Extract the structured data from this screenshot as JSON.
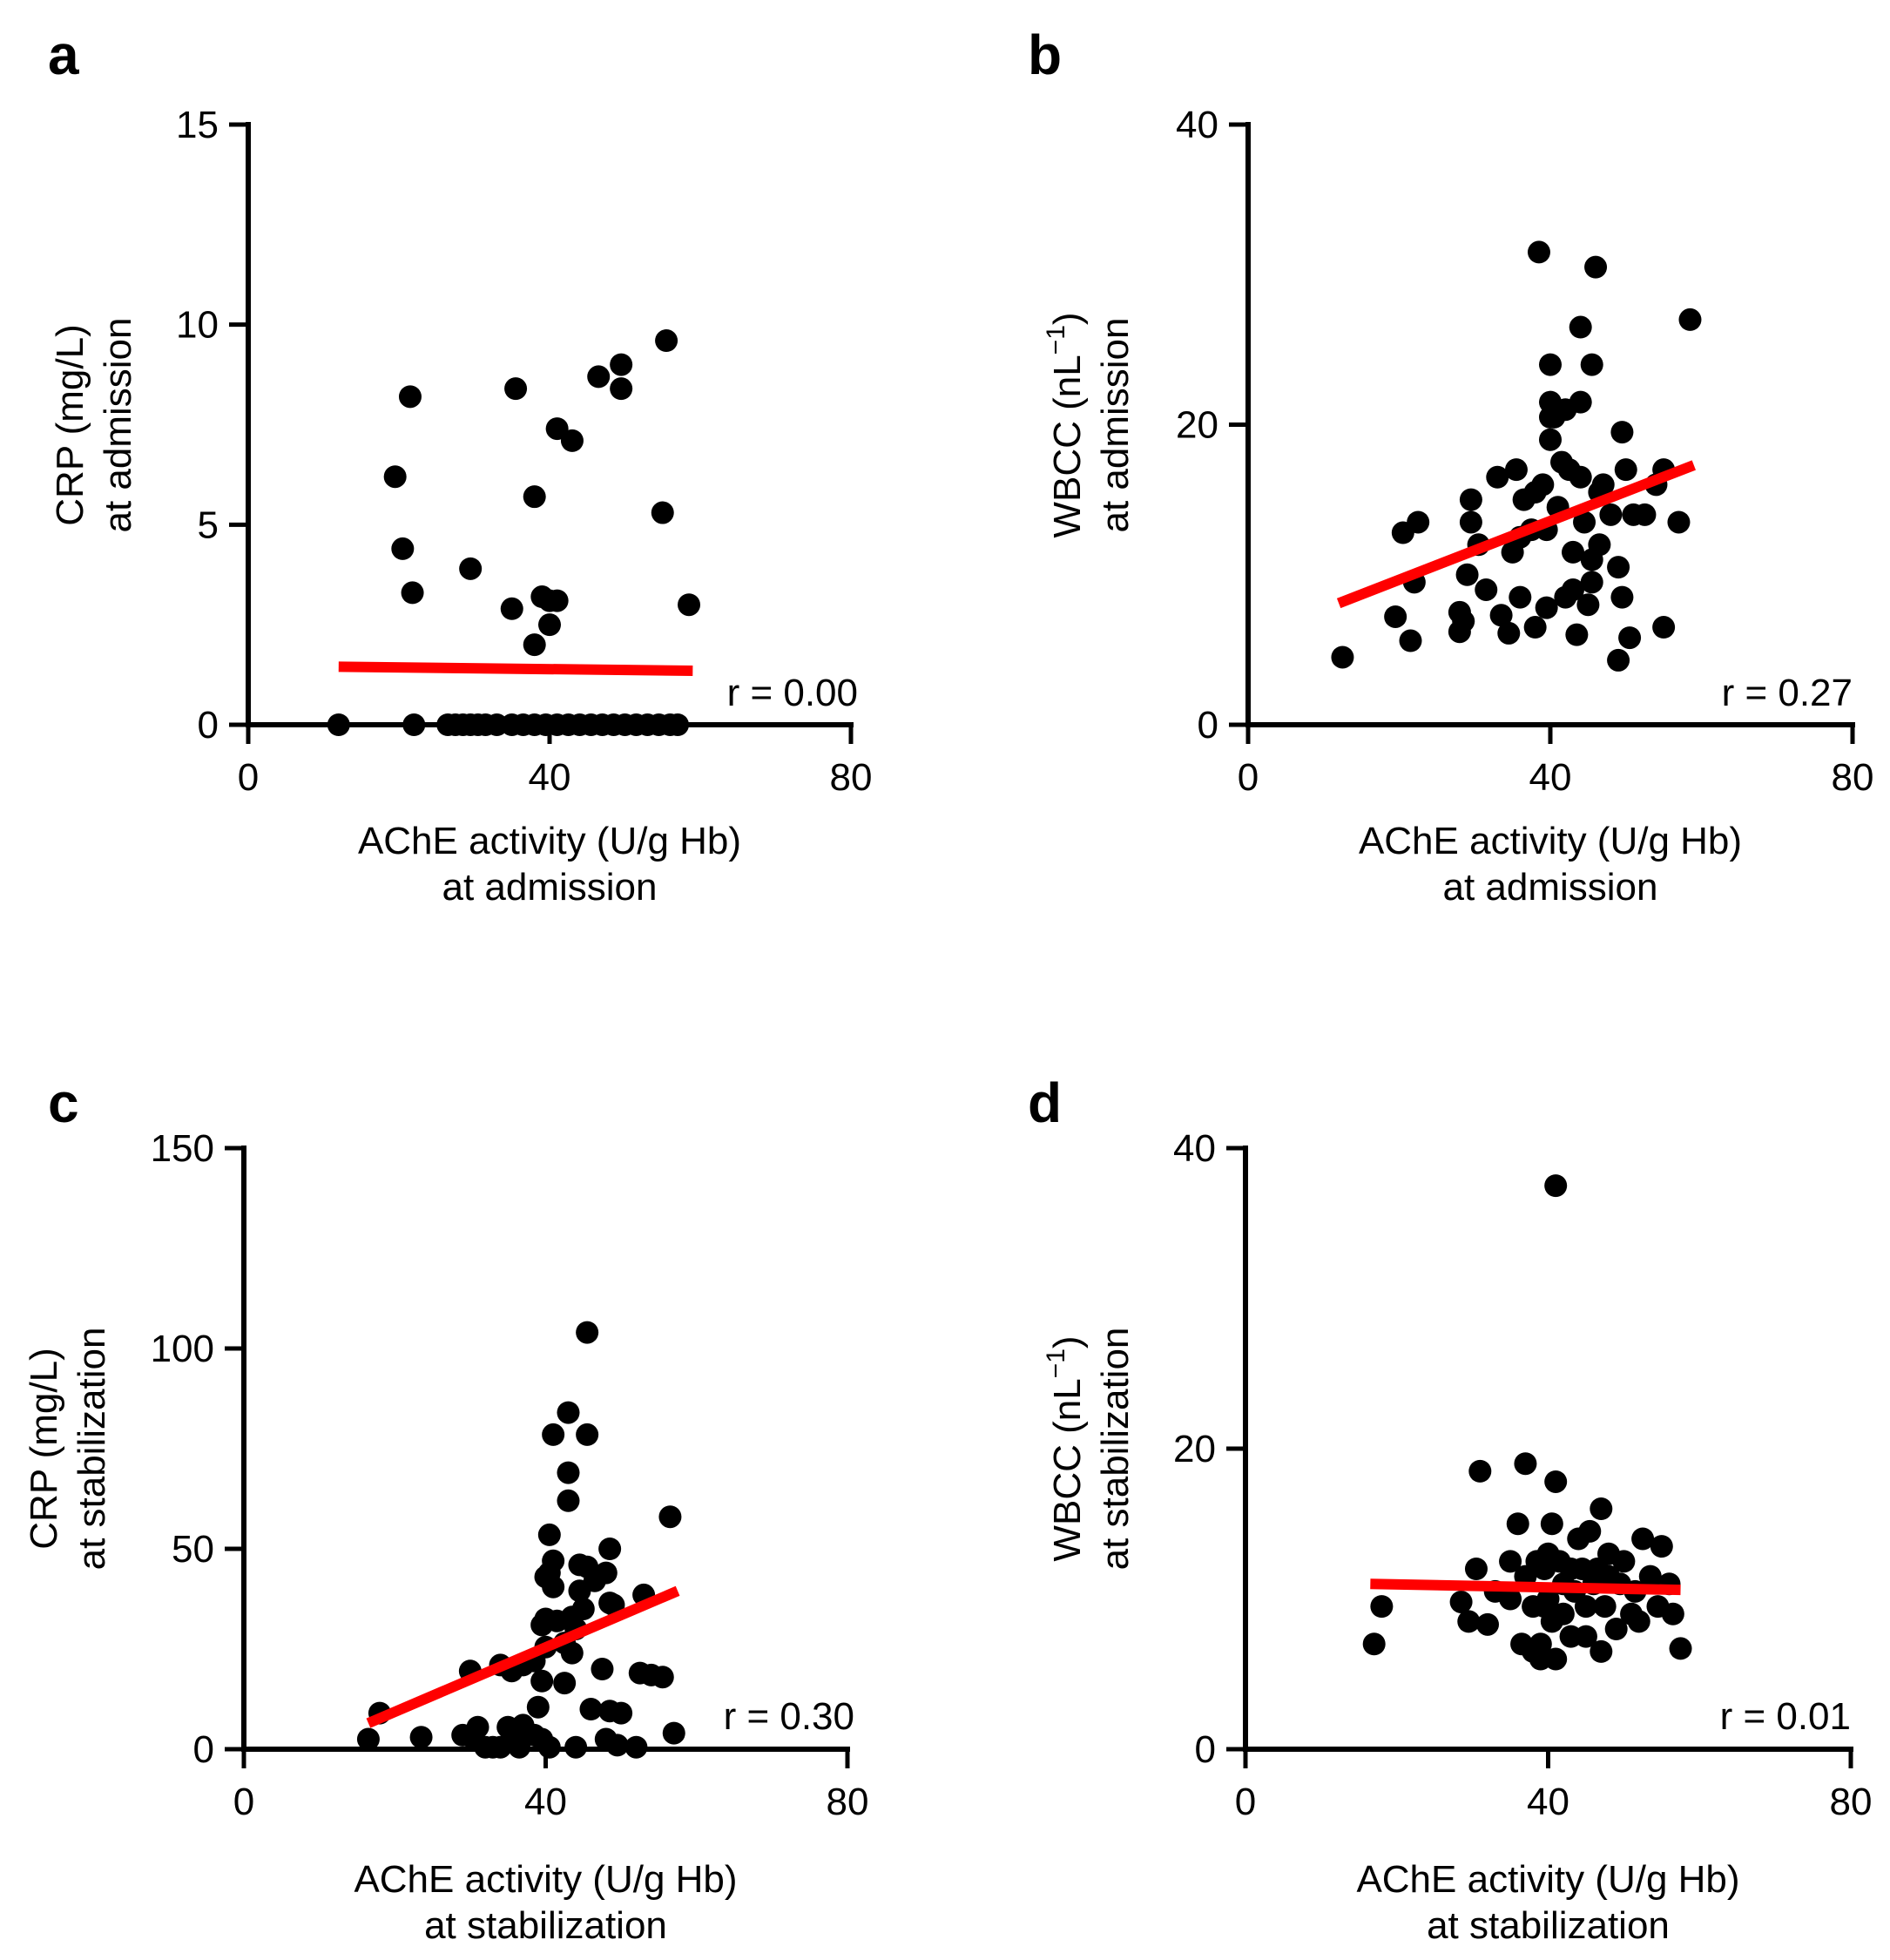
{
  "chart_data": [
    {
      "panel": "a",
      "type": "scatter",
      "xlabel": [
        "AChE activity (U/g Hb)",
        "at admission"
      ],
      "ylabel": [
        "CRP (mg/L)",
        "at admission"
      ],
      "xlim": [
        0,
        80
      ],
      "ylim": [
        0,
        15
      ],
      "xticks": [
        0,
        40,
        80
      ],
      "xtick_labels": [
        "0",
        "40",
        "80"
      ],
      "yticks": [
        0,
        5,
        10,
        15
      ],
      "ytick_labels": [
        "0",
        "5",
        "10",
        "15"
      ],
      "r_text": "r = 0.00",
      "fit_line": {
        "x": [
          12,
          59
        ],
        "y": [
          1.45,
          1.35
        ],
        "color": "#ff0000"
      },
      "points": [
        [
          19.5,
          6.2
        ],
        [
          20.5,
          4.4
        ],
        [
          21.5,
          8.2
        ],
        [
          21.8,
          3.3
        ],
        [
          29.5,
          3.9
        ],
        [
          35.5,
          8.4
        ],
        [
          35,
          2.9
        ],
        [
          38,
          5.7
        ],
        [
          38,
          2.0
        ],
        [
          39,
          3.2
        ],
        [
          40,
          2.5
        ],
        [
          40,
          3.1
        ],
        [
          41,
          3.1
        ],
        [
          41,
          7.4
        ],
        [
          43,
          7.1
        ],
        [
          46.5,
          8.7
        ],
        [
          49.5,
          9.0
        ],
        [
          49.5,
          8.4
        ],
        [
          55,
          5.3
        ],
        [
          55.5,
          9.6
        ],
        [
          58.5,
          3.0
        ],
        [
          12,
          0
        ],
        [
          22,
          0
        ],
        [
          26.5,
          0
        ],
        [
          27.5,
          0
        ],
        [
          28.5,
          0
        ],
        [
          29.5,
          0
        ],
        [
          30.5,
          0
        ],
        [
          31.5,
          0
        ],
        [
          33,
          0
        ],
        [
          35,
          0
        ],
        [
          36.5,
          0
        ],
        [
          38,
          0
        ],
        [
          39.5,
          0
        ],
        [
          41,
          0
        ],
        [
          42.5,
          0
        ],
        [
          44,
          0
        ],
        [
          45.5,
          0
        ],
        [
          47,
          0
        ],
        [
          48.5,
          0
        ],
        [
          50,
          0
        ],
        [
          51.5,
          0
        ],
        [
          53,
          0
        ],
        [
          54.5,
          0
        ],
        [
          56,
          0
        ],
        [
          57,
          0
        ]
      ]
    },
    {
      "panel": "b",
      "type": "scatter",
      "xlabel": [
        "AChE activity (U/g Hb)",
        "at admission"
      ],
      "ylabel": [
        "WBCC (nL",
        "−1",
        ")",
        "at admission"
      ],
      "xlim": [
        0,
        80
      ],
      "ylim": [
        0,
        40
      ],
      "xticks": [
        0,
        40,
        80
      ],
      "xtick_labels": [
        "0",
        "40",
        "80"
      ],
      "yticks": [
        0,
        20,
        40
      ],
      "ytick_labels": [
        "0",
        "20",
        "40"
      ],
      "r_text": "r = 0.27",
      "fit_line": {
        "x": [
          12,
          59
        ],
        "y": [
          8.1,
          17.3
        ],
        "color": "#ff0000"
      },
      "points": [
        [
          12.5,
          4.5
        ],
        [
          19.5,
          7.2
        ],
        [
          20.5,
          12.8
        ],
        [
          21.5,
          5.6
        ],
        [
          22,
          9.5
        ],
        [
          22.5,
          13.5
        ],
        [
          28,
          7.5
        ],
        [
          28,
          6.2
        ],
        [
          28.5,
          6.9
        ],
        [
          29,
          10.0
        ],
        [
          29.5,
          15.0
        ],
        [
          29.5,
          13.5
        ],
        [
          30.5,
          12.0
        ],
        [
          31.5,
          9.0
        ],
        [
          33,
          16.5
        ],
        [
          33.5,
          7.3
        ],
        [
          34.5,
          6.1
        ],
        [
          35,
          11.5
        ],
        [
          35.5,
          17.0
        ],
        [
          36,
          12.5
        ],
        [
          36,
          8.5
        ],
        [
          36.5,
          15.0
        ],
        [
          37.5,
          13.0
        ],
        [
          38,
          15.5
        ],
        [
          38,
          6.5
        ],
        [
          38.5,
          31.5
        ],
        [
          39,
          16.0
        ],
        [
          39.5,
          13.0
        ],
        [
          39.5,
          7.8
        ],
        [
          40,
          24.0
        ],
        [
          40,
          21.5
        ],
        [
          40,
          20.5
        ],
        [
          40,
          19.0
        ],
        [
          40.5,
          20.5
        ],
        [
          41,
          14.5
        ],
        [
          41.5,
          17.5
        ],
        [
          42,
          21.0
        ],
        [
          42,
          8.5
        ],
        [
          42.5,
          17.0
        ],
        [
          43,
          11.5
        ],
        [
          43,
          9.0
        ],
        [
          43.5,
          6.0
        ],
        [
          44,
          26.5
        ],
        [
          44,
          21.5
        ],
        [
          44,
          16.5
        ],
        [
          44.5,
          13.5
        ],
        [
          45,
          8.0
        ],
        [
          45.5,
          24.0
        ],
        [
          45.5,
          11.0
        ],
        [
          45.5,
          9.5
        ],
        [
          46,
          30.5
        ],
        [
          46.5,
          15.5
        ],
        [
          46.5,
          12.0
        ],
        [
          47,
          16.0
        ],
        [
          48,
          14.0
        ],
        [
          49,
          10.5
        ],
        [
          49,
          4.3
        ],
        [
          49.5,
          19.5
        ],
        [
          49.5,
          8.5
        ],
        [
          50,
          17.0
        ],
        [
          50.5,
          5.8
        ],
        [
          51,
          14.0
        ],
        [
          52.5,
          14.0
        ],
        [
          54,
          16.0
        ],
        [
          55,
          6.5
        ],
        [
          55,
          17.0
        ],
        [
          57,
          13.5
        ],
        [
          58.5,
          27.0
        ]
      ]
    },
    {
      "panel": "c",
      "type": "scatter",
      "xlabel": [
        "AChE activity (U/g Hb)",
        "at stabilization"
      ],
      "ylabel": [
        "CRP (mg/L)",
        "at stabilization"
      ],
      "xlim": [
        0,
        80
      ],
      "ylim": [
        0,
        150
      ],
      "xticks": [
        0,
        40,
        80
      ],
      "xtick_labels": [
        "0",
        "40",
        "80"
      ],
      "yticks": [
        0,
        50,
        100,
        150
      ],
      "ytick_labels": [
        "0",
        "50",
        "100",
        "150"
      ],
      "r_text": "r = 0.30",
      "fit_line": {
        "x": [
          16.5,
          57.5
        ],
        "y": [
          6.5,
          39.5
        ],
        "color": "#ff0000"
      },
      "points": [
        [
          16.5,
          2.5
        ],
        [
          18,
          9.0
        ],
        [
          23.5,
          3.0
        ],
        [
          29,
          3.5
        ],
        [
          30,
          19.5
        ],
        [
          30.5,
          2.5
        ],
        [
          31,
          5.5
        ],
        [
          32,
          0.5
        ],
        [
          33,
          0.5
        ],
        [
          34,
          21.0
        ],
        [
          34,
          0.5
        ],
        [
          35,
          5.5
        ],
        [
          35.5,
          19.5
        ],
        [
          36,
          2.0
        ],
        [
          36.5,
          0.5
        ],
        [
          37,
          6.0
        ],
        [
          37,
          21.0
        ],
        [
          38.5,
          3.5
        ],
        [
          38.5,
          22.0
        ],
        [
          39,
          10.5
        ],
        [
          39.5,
          17.0
        ],
        [
          39.5,
          2.5
        ],
        [
          39.5,
          31.0
        ],
        [
          40,
          43.0
        ],
        [
          40,
          32.5
        ],
        [
          40,
          25.5
        ],
        [
          40.5,
          53.5
        ],
        [
          40.5,
          44.0
        ],
        [
          40.5,
          0.5
        ],
        [
          41,
          78.5
        ],
        [
          41,
          47.0
        ],
        [
          41,
          40.5
        ],
        [
          41.5,
          32.0
        ],
        [
          42.5,
          16.5
        ],
        [
          42.5,
          26.5
        ],
        [
          43,
          84.0
        ],
        [
          43,
          69.0
        ],
        [
          43,
          62.0
        ],
        [
          43.5,
          33.0
        ],
        [
          43.5,
          24.0
        ],
        [
          44,
          30.0
        ],
        [
          44,
          0.5
        ],
        [
          44.5,
          46.0
        ],
        [
          44.5,
          39.5
        ],
        [
          45,
          35.0
        ],
        [
          45.5,
          104.0
        ],
        [
          45.5,
          78.5
        ],
        [
          45.5,
          45.5
        ],
        [
          46,
          10.0
        ],
        [
          46.5,
          42.0
        ],
        [
          47.5,
          20.0
        ],
        [
          48,
          44.0
        ],
        [
          48,
          2.5
        ],
        [
          48.5,
          36.5
        ],
        [
          48.5,
          9.5
        ],
        [
          48.5,
          50.0
        ],
        [
          49,
          36.0
        ],
        [
          49.5,
          1.0
        ],
        [
          50,
          9.0
        ],
        [
          52,
          0.5
        ],
        [
          52.5,
          19.0
        ],
        [
          53,
          38.5
        ],
        [
          54,
          18.5
        ],
        [
          55.5,
          18.0
        ],
        [
          56.5,
          58.0
        ],
        [
          57,
          4.0
        ]
      ]
    },
    {
      "panel": "d",
      "type": "scatter",
      "xlabel": [
        "AChE activity (U/g Hb)",
        "at stabilization"
      ],
      "ylabel": [
        "WBCC (nL",
        "−1",
        ")",
        "at stabilization"
      ],
      "xlim": [
        0,
        80
      ],
      "ylim": [
        0,
        40
      ],
      "xticks": [
        0,
        40,
        80
      ],
      "xtick_labels": [
        "0",
        "40",
        "80"
      ],
      "yticks": [
        0,
        20,
        40
      ],
      "ytick_labels": [
        "0",
        "20",
        "40"
      ],
      "r_text": "r = 0.01",
      "fit_line": {
        "x": [
          16.5,
          57.5
        ],
        "y": [
          11.0,
          10.6
        ],
        "color": "#ff0000"
      },
      "points": [
        [
          17,
          7.0
        ],
        [
          18,
          9.5
        ],
        [
          28.5,
          9.8
        ],
        [
          29.5,
          8.5
        ],
        [
          30.5,
          12.0
        ],
        [
          31,
          18.5
        ],
        [
          32,
          8.3
        ],
        [
          33,
          10.5
        ],
        [
          35,
          12.5
        ],
        [
          35,
          10.0
        ],
        [
          36,
          15.0
        ],
        [
          36.5,
          7.0
        ],
        [
          37,
          19.0
        ],
        [
          37,
          11.5
        ],
        [
          38,
          6.5
        ],
        [
          38,
          9.5
        ],
        [
          38.5,
          12.5
        ],
        [
          39,
          7.0
        ],
        [
          39,
          6.0
        ],
        [
          39.5,
          9.5
        ],
        [
          39.5,
          12.0
        ],
        [
          40,
          13.0
        ],
        [
          40,
          10.0
        ],
        [
          40.5,
          15.0
        ],
        [
          40.5,
          8.5
        ],
        [
          41,
          6.0
        ],
        [
          41,
          37.5
        ],
        [
          41,
          17.8
        ],
        [
          41.5,
          12.5
        ],
        [
          42,
          11.0
        ],
        [
          42,
          9.0
        ],
        [
          43,
          12.0
        ],
        [
          43,
          7.5
        ],
        [
          43.5,
          10.5
        ],
        [
          44,
          14.0
        ],
        [
          44.5,
          12.0
        ],
        [
          45,
          7.5
        ],
        [
          45,
          9.5
        ],
        [
          45.5,
          14.5
        ],
        [
          46,
          11.0
        ],
        [
          46.5,
          12.0
        ],
        [
          47,
          16.0
        ],
        [
          47,
          6.5
        ],
        [
          47.5,
          9.5
        ],
        [
          48,
          11.5
        ],
        [
          48,
          13.0
        ],
        [
          49,
          8.0
        ],
        [
          49.5,
          11.0
        ],
        [
          50,
          12.5
        ],
        [
          51,
          9.0
        ],
        [
          51.5,
          10.5
        ],
        [
          52,
          8.5
        ],
        [
          52.5,
          14.0
        ],
        [
          53.5,
          11.5
        ],
        [
          54.5,
          9.5
        ],
        [
          55,
          13.5
        ],
        [
          56,
          11.0
        ],
        [
          56.5,
          9.0
        ],
        [
          57.5,
          6.7
        ]
      ]
    }
  ]
}
